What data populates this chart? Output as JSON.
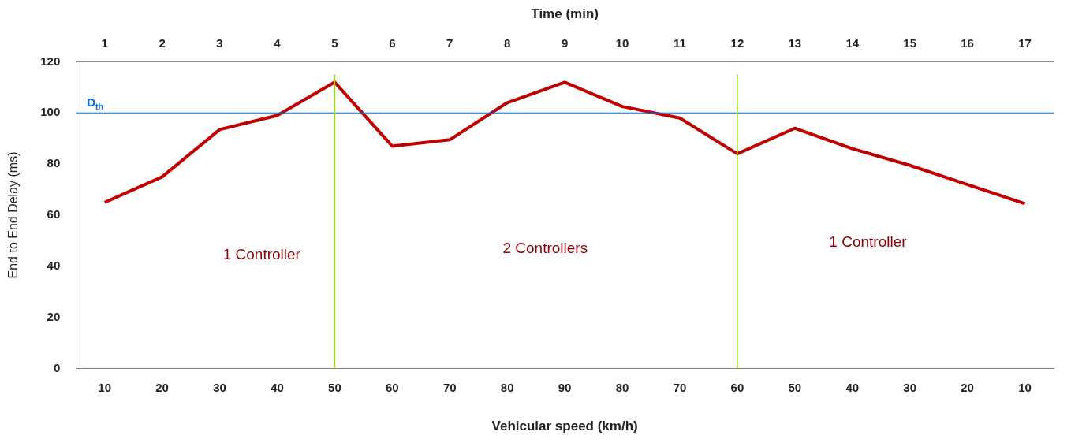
{
  "chart_data": {
    "type": "line",
    "xlabel": "Vehicular speed (km/h)",
    "ylabel": "End to End Delay (ms)",
    "x2label": "Time (min)",
    "categories": [
      "10",
      "20",
      "30",
      "40",
      "50",
      "60",
      "70",
      "80",
      "90",
      "80",
      "70",
      "60",
      "50",
      "40",
      "30",
      "20",
      "10"
    ],
    "series": [
      {
        "color": "#c00000",
        "values": [
          65,
          75,
          93.5,
          99,
          112,
          87,
          89.5,
          104,
          112,
          102.5,
          98,
          84,
          94,
          86,
          79.5,
          72,
          64.5
        ]
      }
    ],
    "ylim": [
      0,
      120
    ],
    "yticks": [
      0,
      20,
      40,
      60,
      80,
      100,
      120
    ],
    "x2lim": [
      0.5,
      17.5
    ],
    "x2ticks": [
      1,
      2,
      3,
      4,
      5,
      6,
      7,
      8,
      9,
      10,
      11,
      12,
      13,
      14,
      15,
      16,
      17
    ],
    "ref_lines": [
      {
        "axis": "y",
        "value": 100,
        "label": "D$_{th}$",
        "color": "#0070e0"
      },
      {
        "axis": "x2",
        "value": 5,
        "color": "#99e000"
      },
      {
        "axis": "x2",
        "value": 12,
        "color": "#99e000"
      }
    ],
    "annotations": [
      "1 Controller",
      "2 Controllers",
      "1 Controller"
    ],
    "grid": false,
    "legend": false,
    "marker": "none",
    "line_style": "solid"
  }
}
